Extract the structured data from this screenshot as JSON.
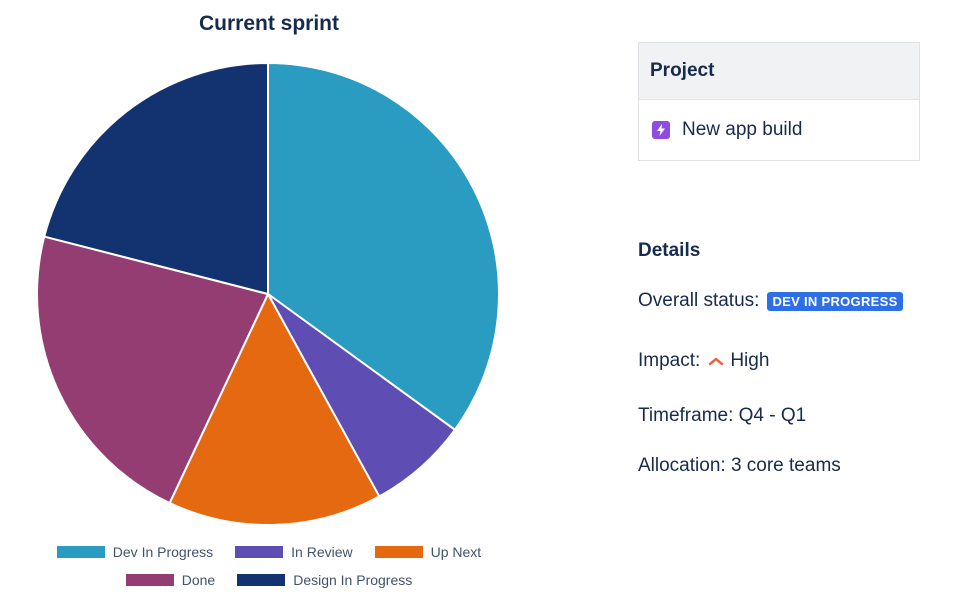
{
  "chart_data": {
    "type": "pie",
    "title": "Current sprint",
    "categories": [
      "Dev In Progress",
      "In Review",
      "Up Next",
      "Done",
      "Design In Progress"
    ],
    "values": [
      35,
      7,
      15,
      22,
      21
    ],
    "colors": [
      "#2a9bc1",
      "#5e4db2",
      "#e56910",
      "#943d73",
      "#133370"
    ],
    "legend_position": "bottom",
    "start_angle": "top",
    "direction": "clockwise"
  },
  "project": {
    "header": "Project",
    "name": "New app build",
    "icon": "lightning-icon",
    "icon_color": "#8f4ce0"
  },
  "details": {
    "title": "Details",
    "status_label": "Overall status:",
    "status_value": "DEV IN PROGRESS",
    "status_color": "#2f6fe6",
    "impact_label": "Impact:",
    "impact_icon": "chevron-up-icon",
    "impact_value": "High",
    "impact_color": "#f15a37",
    "timeframe": "Timeframe: Q4 - Q1",
    "allocation": "Allocation: 3 core teams"
  }
}
